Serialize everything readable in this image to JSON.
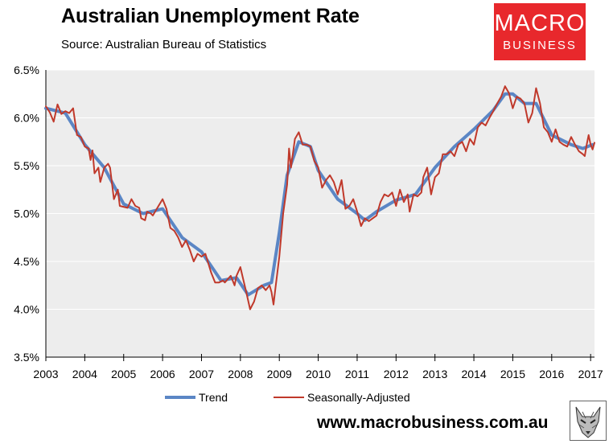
{
  "title": "Australian Unemployment Rate",
  "subtitle": "Source: Australian Bureau of Statistics",
  "logo": {
    "line1": "MACRO",
    "line2": "BUSINESS",
    "color": "#e8282c"
  },
  "footer": "www.macrobusiness.com.au",
  "colors": {
    "trend": "#5b86c5",
    "seasonal": "#c0392b",
    "plot_bg": "#ededed"
  },
  "legend": {
    "trend": "Trend",
    "seasonal": "Seasonally-Adjusted"
  },
  "chart_data": {
    "type": "line",
    "title": "Australian Unemployment Rate",
    "subtitle": "Source: Australian Bureau of Statistics",
    "xlim": [
      2003,
      2017.1
    ],
    "ylim": [
      3.5,
      6.5
    ],
    "x_ticks": [
      "2003",
      "2004",
      "2005",
      "2006",
      "2007",
      "2008",
      "2009",
      "2010",
      "2011",
      "2012",
      "2013",
      "2014",
      "2015",
      "2016",
      "2017"
    ],
    "y_ticks": [
      "3.5%",
      "4.0%",
      "4.5%",
      "5.0%",
      "5.5%",
      "6.0%",
      "6.5%"
    ],
    "y_tick_values": [
      3.5,
      4.0,
      4.5,
      5.0,
      5.5,
      6.0,
      6.5
    ],
    "grid": "horizontal",
    "legend_position": "bottom",
    "series": [
      {
        "name": "Trend",
        "points": [
          [
            2003.0,
            6.1
          ],
          [
            2003.5,
            6.05
          ],
          [
            2004.0,
            5.72
          ],
          [
            2004.5,
            5.48
          ],
          [
            2005.0,
            5.1
          ],
          [
            2005.5,
            5.0
          ],
          [
            2006.0,
            5.05
          ],
          [
            2006.5,
            4.75
          ],
          [
            2007.0,
            4.6
          ],
          [
            2007.5,
            4.3
          ],
          [
            2007.9,
            4.33
          ],
          [
            2008.2,
            4.15
          ],
          [
            2008.6,
            4.25
          ],
          [
            2008.8,
            4.28
          ],
          [
            2009.0,
            4.8
          ],
          [
            2009.2,
            5.4
          ],
          [
            2009.5,
            5.75
          ],
          [
            2009.8,
            5.7
          ],
          [
            2010.0,
            5.45
          ],
          [
            2010.5,
            5.15
          ],
          [
            2011.0,
            5.0
          ],
          [
            2011.2,
            4.93
          ],
          [
            2011.5,
            5.02
          ],
          [
            2012.0,
            5.14
          ],
          [
            2012.5,
            5.2
          ],
          [
            2013.0,
            5.48
          ],
          [
            2013.5,
            5.7
          ],
          [
            2014.0,
            5.88
          ],
          [
            2014.5,
            6.08
          ],
          [
            2014.8,
            6.25
          ],
          [
            2015.0,
            6.25
          ],
          [
            2015.3,
            6.15
          ],
          [
            2015.6,
            6.15
          ],
          [
            2016.0,
            5.82
          ],
          [
            2016.5,
            5.72
          ],
          [
            2016.8,
            5.68
          ],
          [
            2017.05,
            5.72
          ]
        ]
      },
      {
        "name": "Seasonally-Adjusted",
        "points": [
          [
            2003.0,
            6.12
          ],
          [
            2003.1,
            6.06
          ],
          [
            2003.2,
            5.96
          ],
          [
            2003.3,
            6.14
          ],
          [
            2003.4,
            6.04
          ],
          [
            2003.5,
            6.07
          ],
          [
            2003.6,
            6.05
          ],
          [
            2003.7,
            6.1
          ],
          [
            2003.8,
            5.82
          ],
          [
            2003.9,
            5.8
          ],
          [
            2004.0,
            5.7
          ],
          [
            2004.1,
            5.68
          ],
          [
            2004.15,
            5.56
          ],
          [
            2004.2,
            5.66
          ],
          [
            2004.25,
            5.42
          ],
          [
            2004.35,
            5.48
          ],
          [
            2004.4,
            5.33
          ],
          [
            2004.5,
            5.48
          ],
          [
            2004.6,
            5.52
          ],
          [
            2004.65,
            5.48
          ],
          [
            2004.75,
            5.15
          ],
          [
            2004.85,
            5.25
          ],
          [
            2004.9,
            5.08
          ],
          [
            2005.1,
            5.06
          ],
          [
            2005.2,
            5.15
          ],
          [
            2005.3,
            5.08
          ],
          [
            2005.4,
            5.06
          ],
          [
            2005.45,
            4.95
          ],
          [
            2005.55,
            4.93
          ],
          [
            2005.6,
            5.02
          ],
          [
            2005.7,
            5.0
          ],
          [
            2005.75,
            4.98
          ],
          [
            2005.85,
            5.05
          ],
          [
            2006.0,
            5.15
          ],
          [
            2006.1,
            5.05
          ],
          [
            2006.2,
            4.85
          ],
          [
            2006.3,
            4.82
          ],
          [
            2006.4,
            4.75
          ],
          [
            2006.5,
            4.65
          ],
          [
            2006.6,
            4.72
          ],
          [
            2006.7,
            4.62
          ],
          [
            2006.8,
            4.5
          ],
          [
            2006.9,
            4.58
          ],
          [
            2007.0,
            4.55
          ],
          [
            2007.1,
            4.58
          ],
          [
            2007.25,
            4.38
          ],
          [
            2007.35,
            4.28
          ],
          [
            2007.45,
            4.28
          ],
          [
            2007.55,
            4.3
          ],
          [
            2007.6,
            4.28
          ],
          [
            2007.75,
            4.35
          ],
          [
            2007.8,
            4.3
          ],
          [
            2007.85,
            4.25
          ],
          [
            2007.9,
            4.35
          ],
          [
            2008.0,
            4.44
          ],
          [
            2008.05,
            4.35
          ],
          [
            2008.15,
            4.18
          ],
          [
            2008.25,
            4.0
          ],
          [
            2008.35,
            4.08
          ],
          [
            2008.45,
            4.22
          ],
          [
            2008.55,
            4.25
          ],
          [
            2008.65,
            4.2
          ],
          [
            2008.75,
            4.25
          ],
          [
            2008.8,
            4.18
          ],
          [
            2008.85,
            4.05
          ],
          [
            2008.9,
            4.22
          ],
          [
            2009.0,
            4.55
          ],
          [
            2009.1,
            5.0
          ],
          [
            2009.2,
            5.3
          ],
          [
            2009.25,
            5.68
          ],
          [
            2009.3,
            5.48
          ],
          [
            2009.4,
            5.78
          ],
          [
            2009.5,
            5.85
          ],
          [
            2009.6,
            5.72
          ],
          [
            2009.7,
            5.72
          ],
          [
            2009.8,
            5.7
          ],
          [
            2009.9,
            5.55
          ],
          [
            2010.0,
            5.48
          ],
          [
            2010.1,
            5.27
          ],
          [
            2010.2,
            5.35
          ],
          [
            2010.3,
            5.4
          ],
          [
            2010.4,
            5.33
          ],
          [
            2010.5,
            5.2
          ],
          [
            2010.6,
            5.35
          ],
          [
            2010.7,
            5.05
          ],
          [
            2010.8,
            5.08
          ],
          [
            2010.9,
            5.15
          ],
          [
            2011.0,
            5.02
          ],
          [
            2011.1,
            4.87
          ],
          [
            2011.2,
            4.95
          ],
          [
            2011.3,
            4.92
          ],
          [
            2011.4,
            4.95
          ],
          [
            2011.5,
            4.98
          ],
          [
            2011.6,
            5.12
          ],
          [
            2011.7,
            5.2
          ],
          [
            2011.8,
            5.18
          ],
          [
            2011.9,
            5.22
          ],
          [
            2012.0,
            5.08
          ],
          [
            2012.1,
            5.25
          ],
          [
            2012.2,
            5.12
          ],
          [
            2012.3,
            5.2
          ],
          [
            2012.35,
            5.02
          ],
          [
            2012.45,
            5.2
          ],
          [
            2012.55,
            5.18
          ],
          [
            2012.65,
            5.22
          ],
          [
            2012.7,
            5.38
          ],
          [
            2012.8,
            5.48
          ],
          [
            2012.9,
            5.2
          ],
          [
            2013.0,
            5.38
          ],
          [
            2013.1,
            5.42
          ],
          [
            2013.2,
            5.62
          ],
          [
            2013.3,
            5.62
          ],
          [
            2013.4,
            5.65
          ],
          [
            2013.5,
            5.6
          ],
          [
            2013.6,
            5.72
          ],
          [
            2013.7,
            5.75
          ],
          [
            2013.8,
            5.65
          ],
          [
            2013.9,
            5.78
          ],
          [
            2014.0,
            5.72
          ],
          [
            2014.1,
            5.9
          ],
          [
            2014.2,
            5.95
          ],
          [
            2014.3,
            5.92
          ],
          [
            2014.4,
            6.0
          ],
          [
            2014.5,
            6.07
          ],
          [
            2014.6,
            6.15
          ],
          [
            2014.7,
            6.22
          ],
          [
            2014.8,
            6.33
          ],
          [
            2014.9,
            6.26
          ],
          [
            2015.0,
            6.1
          ],
          [
            2015.1,
            6.22
          ],
          [
            2015.2,
            6.2
          ],
          [
            2015.3,
            6.15
          ],
          [
            2015.4,
            5.95
          ],
          [
            2015.5,
            6.05
          ],
          [
            2015.6,
            6.31
          ],
          [
            2015.7,
            6.15
          ],
          [
            2015.8,
            5.9
          ],
          [
            2015.9,
            5.85
          ],
          [
            2016.0,
            5.75
          ],
          [
            2016.1,
            5.88
          ],
          [
            2016.2,
            5.75
          ],
          [
            2016.3,
            5.72
          ],
          [
            2016.4,
            5.7
          ],
          [
            2016.5,
            5.8
          ],
          [
            2016.6,
            5.72
          ],
          [
            2016.7,
            5.65
          ],
          [
            2016.8,
            5.62
          ],
          [
            2016.85,
            5.6
          ],
          [
            2016.9,
            5.72
          ],
          [
            2016.95,
            5.82
          ],
          [
            2017.0,
            5.72
          ],
          [
            2017.05,
            5.67
          ],
          [
            2017.1,
            5.74
          ]
        ]
      }
    ]
  }
}
